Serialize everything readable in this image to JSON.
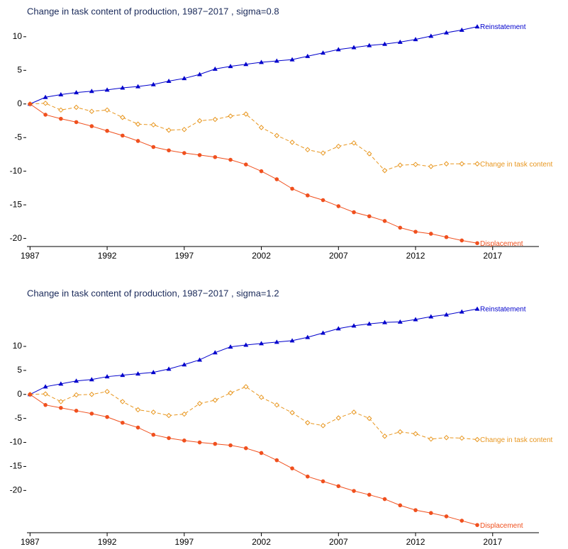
{
  "chart_data": [
    {
      "type": "line",
      "title": "Change in task content of production, 1987−2017 , sigma=0.8",
      "x": [
        1987,
        1988,
        1989,
        1990,
        1991,
        1992,
        1993,
        1994,
        1995,
        1996,
        1997,
        1998,
        1999,
        2000,
        2001,
        2002,
        2003,
        2004,
        2005,
        2006,
        2007,
        2008,
        2009,
        2010,
        2011,
        2012,
        2013,
        2014,
        2015,
        2016
      ],
      "series": [
        {
          "name": "Reinstatement",
          "color": "#0000cc",
          "marker": "triangle",
          "dashed": false,
          "values": [
            0,
            1.0,
            1.4,
            1.7,
            1.9,
            2.1,
            2.4,
            2.6,
            2.9,
            3.4,
            3.8,
            4.4,
            5.2,
            5.6,
            5.9,
            6.2,
            6.4,
            6.6,
            7.1,
            7.6,
            8.1,
            8.4,
            8.7,
            8.9,
            9.2,
            9.6,
            10.1,
            10.6,
            11.0,
            11.5
          ]
        },
        {
          "name": "Change in task content",
          "color": "#e8961e",
          "marker": "diamond",
          "dashed": true,
          "values": [
            0,
            0.1,
            -0.9,
            -0.5,
            -1.1,
            -0.9,
            -2.0,
            -3.0,
            -3.1,
            -3.9,
            -3.8,
            -2.5,
            -2.3,
            -1.8,
            -1.5,
            -3.5,
            -4.7,
            -5.7,
            -6.8,
            -7.3,
            -6.3,
            -5.8,
            -7.4,
            -9.9,
            -9.1,
            -9.0,
            -9.3,
            -8.9,
            -8.9,
            -8.9
          ]
        },
        {
          "name": "Displacement",
          "color": "#f0501e",
          "marker": "circle",
          "dashed": false,
          "values": [
            0,
            -1.6,
            -2.2,
            -2.7,
            -3.3,
            -4.0,
            -4.7,
            -5.5,
            -6.4,
            -6.9,
            -7.3,
            -7.6,
            -7.9,
            -8.3,
            -9.0,
            -10.0,
            -11.2,
            -12.6,
            -13.6,
            -14.3,
            -15.2,
            -16.1,
            -16.7,
            -17.4,
            -18.4,
            -19.0,
            -19.3,
            -19.8,
            -20.3,
            -20.7
          ]
        }
      ],
      "xlim": [
        1986.8,
        2020
      ],
      "xticks": [
        1987,
        1992,
        1997,
        2002,
        2007,
        2012,
        2017
      ],
      "ylim": [
        -21.2,
        12.3
      ],
      "yticks": [
        -20,
        -15,
        -10,
        -5,
        0,
        5,
        10
      ],
      "grid": false
    },
    {
      "type": "line",
      "title": "Change in task content of production, 1987−2017 , sigma=1.2",
      "x": [
        1987,
        1988,
        1989,
        1990,
        1991,
        1992,
        1993,
        1994,
        1995,
        1996,
        1997,
        1998,
        1999,
        2000,
        2001,
        2002,
        2003,
        2004,
        2005,
        2006,
        2007,
        2008,
        2009,
        2010,
        2011,
        2012,
        2013,
        2014,
        2015,
        2016
      ],
      "series": [
        {
          "name": "Reinstatement",
          "color": "#0000cc",
          "marker": "triangle",
          "dashed": false,
          "values": [
            0,
            1.6,
            2.2,
            2.8,
            3.1,
            3.7,
            4.0,
            4.3,
            4.6,
            5.3,
            6.2,
            7.2,
            8.7,
            9.9,
            10.3,
            10.6,
            10.9,
            11.2,
            11.9,
            12.8,
            13.7,
            14.3,
            14.7,
            15.0,
            15.1,
            15.6,
            16.2,
            16.6,
            17.2,
            17.8
          ]
        },
        {
          "name": "Change in task content",
          "color": "#e8961e",
          "marker": "diamond",
          "dashed": true,
          "values": [
            0,
            0.1,
            -1.5,
            -0.1,
            0,
            0.6,
            -1.5,
            -3.2,
            -3.7,
            -4.4,
            -4.1,
            -1.9,
            -1.2,
            0.3,
            1.6,
            -0.6,
            -2.2,
            -3.8,
            -5.9,
            -6.5,
            -4.9,
            -3.7,
            -5.0,
            -8.7,
            -7.8,
            -8.2,
            -9.3,
            -9.0,
            -9.1,
            -9.4
          ]
        },
        {
          "name": "Displacement",
          "color": "#f0501e",
          "marker": "circle",
          "dashed": false,
          "values": [
            0,
            -2.2,
            -2.8,
            -3.4,
            -4.0,
            -4.7,
            -5.9,
            -6.9,
            -8.4,
            -9.1,
            -9.6,
            -10.0,
            -10.3,
            -10.6,
            -11.2,
            -12.2,
            -13.7,
            -15.4,
            -17.1,
            -18.1,
            -19.1,
            -20.1,
            -20.9,
            -21.8,
            -23.1,
            -24.1,
            -24.7,
            -25.4,
            -26.3,
            -27.2
          ]
        }
      ],
      "xlim": [
        1986.8,
        2020
      ],
      "xticks": [
        1987,
        1992,
        1997,
        2002,
        2007,
        2012,
        2017
      ],
      "ylim": [
        -28.8,
        18.7
      ],
      "yticks": [
        -20,
        -15,
        -10,
        -5,
        0,
        5,
        10
      ],
      "grid": false
    }
  ]
}
